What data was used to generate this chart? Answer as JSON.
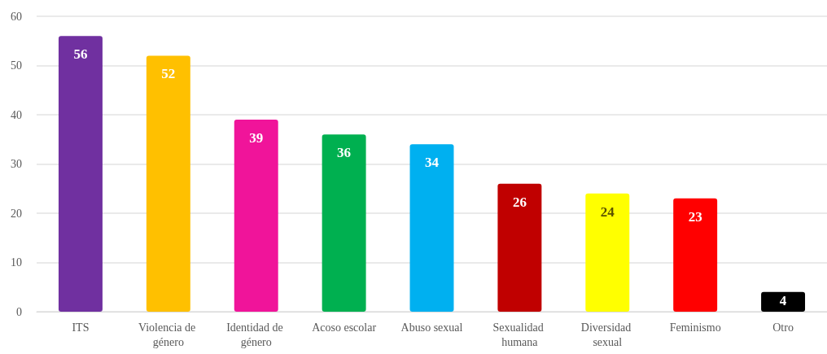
{
  "chart_data": {
    "type": "bar",
    "categories": [
      "ITS",
      "Violencia de género",
      "Identidad de género",
      "Acoso escolar",
      "Abuso sexual",
      "Sexualidad humana",
      "Diversidad sexual",
      "Feminismo",
      "Otro"
    ],
    "values": [
      56,
      52,
      39,
      36,
      34,
      26,
      24,
      23,
      4
    ],
    "colors": [
      "#7030a0",
      "#ffc000",
      "#f0149a",
      "#00b050",
      "#00b0f0",
      "#c00000",
      "#ffff00",
      "#ff0000",
      "#000000"
    ],
    "ylim": [
      0,
      60
    ],
    "yticks": [
      0,
      10,
      20,
      30,
      40,
      50,
      60
    ],
    "grid": "y",
    "data_labels": true
  }
}
